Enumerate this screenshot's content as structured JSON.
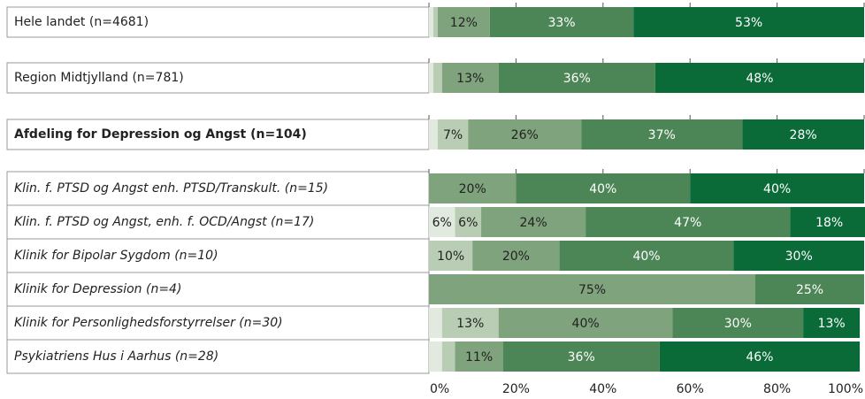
{
  "chart_data": {
    "type": "stacked-bar-horizontal",
    "categories": [
      "Hele landet (n=4681)",
      "Region Midtjylland (n=781)",
      "Afdeling for Depression og Angst (n=104)",
      "Klin. f. PTSD og Angst enh. PTSD/Transkult. (n=15)",
      "Klin. f. PTSD og Angst, enh. f. OCD/Angst (n=17)",
      "Klinik for Bipolar Sygdom (n=10)",
      "Klinik for Depression (n=4)",
      "Klinik for Personlighedsforstyrrelser (n=30)",
      "Psykiatriens Hus i Aarhus (n=28)"
    ],
    "series": [
      {
        "color": "#e2eadf",
        "label_color": "#222222",
        "values": [
          1,
          1,
          2,
          0,
          6,
          0,
          0,
          3,
          3
        ],
        "value_labels": [
          null,
          null,
          null,
          null,
          "6%",
          null,
          null,
          null,
          null
        ]
      },
      {
        "color": "#b8cdb4",
        "label_color": "#222222",
        "values": [
          1,
          2,
          7,
          0,
          6,
          10,
          0,
          13,
          3
        ],
        "value_labels": [
          null,
          null,
          "7%",
          null,
          "6%",
          "10%",
          null,
          "13%",
          null
        ]
      },
      {
        "color": "#7fa37c",
        "label_color": "#222222",
        "values": [
          12,
          13,
          26,
          20,
          24,
          20,
          75,
          40,
          11
        ],
        "value_labels": [
          "12%",
          "13%",
          "26%",
          "20%",
          "24%",
          "20%",
          "75%",
          "40%",
          "11%"
        ]
      },
      {
        "color": "#4d8656",
        "label_color": "#ffffff",
        "values": [
          33,
          36,
          37,
          40,
          47,
          40,
          25,
          30,
          36
        ],
        "value_labels": [
          "33%",
          "36%",
          "37%",
          "40%",
          "47%",
          "40%",
          "25%",
          "30%",
          "36%"
        ]
      },
      {
        "color": "#0b6b38",
        "label_color": "#ffffff",
        "values": [
          53,
          48,
          28,
          40,
          18,
          30,
          0,
          13,
          46
        ],
        "value_labels": [
          "53%",
          "48%",
          "28%",
          "40%",
          "18%",
          "30%",
          null,
          "13%",
          "46%"
        ]
      }
    ],
    "xlim": [
      0,
      100
    ],
    "xticks": [
      {
        "value": 0,
        "label": "0%"
      },
      {
        "value": 20,
        "label": "20%"
      },
      {
        "value": 40,
        "label": "40%"
      },
      {
        "value": 60,
        "label": "60%"
      },
      {
        "value": 80,
        "label": "80%"
      },
      {
        "value": 100,
        "label": "100%"
      }
    ]
  }
}
